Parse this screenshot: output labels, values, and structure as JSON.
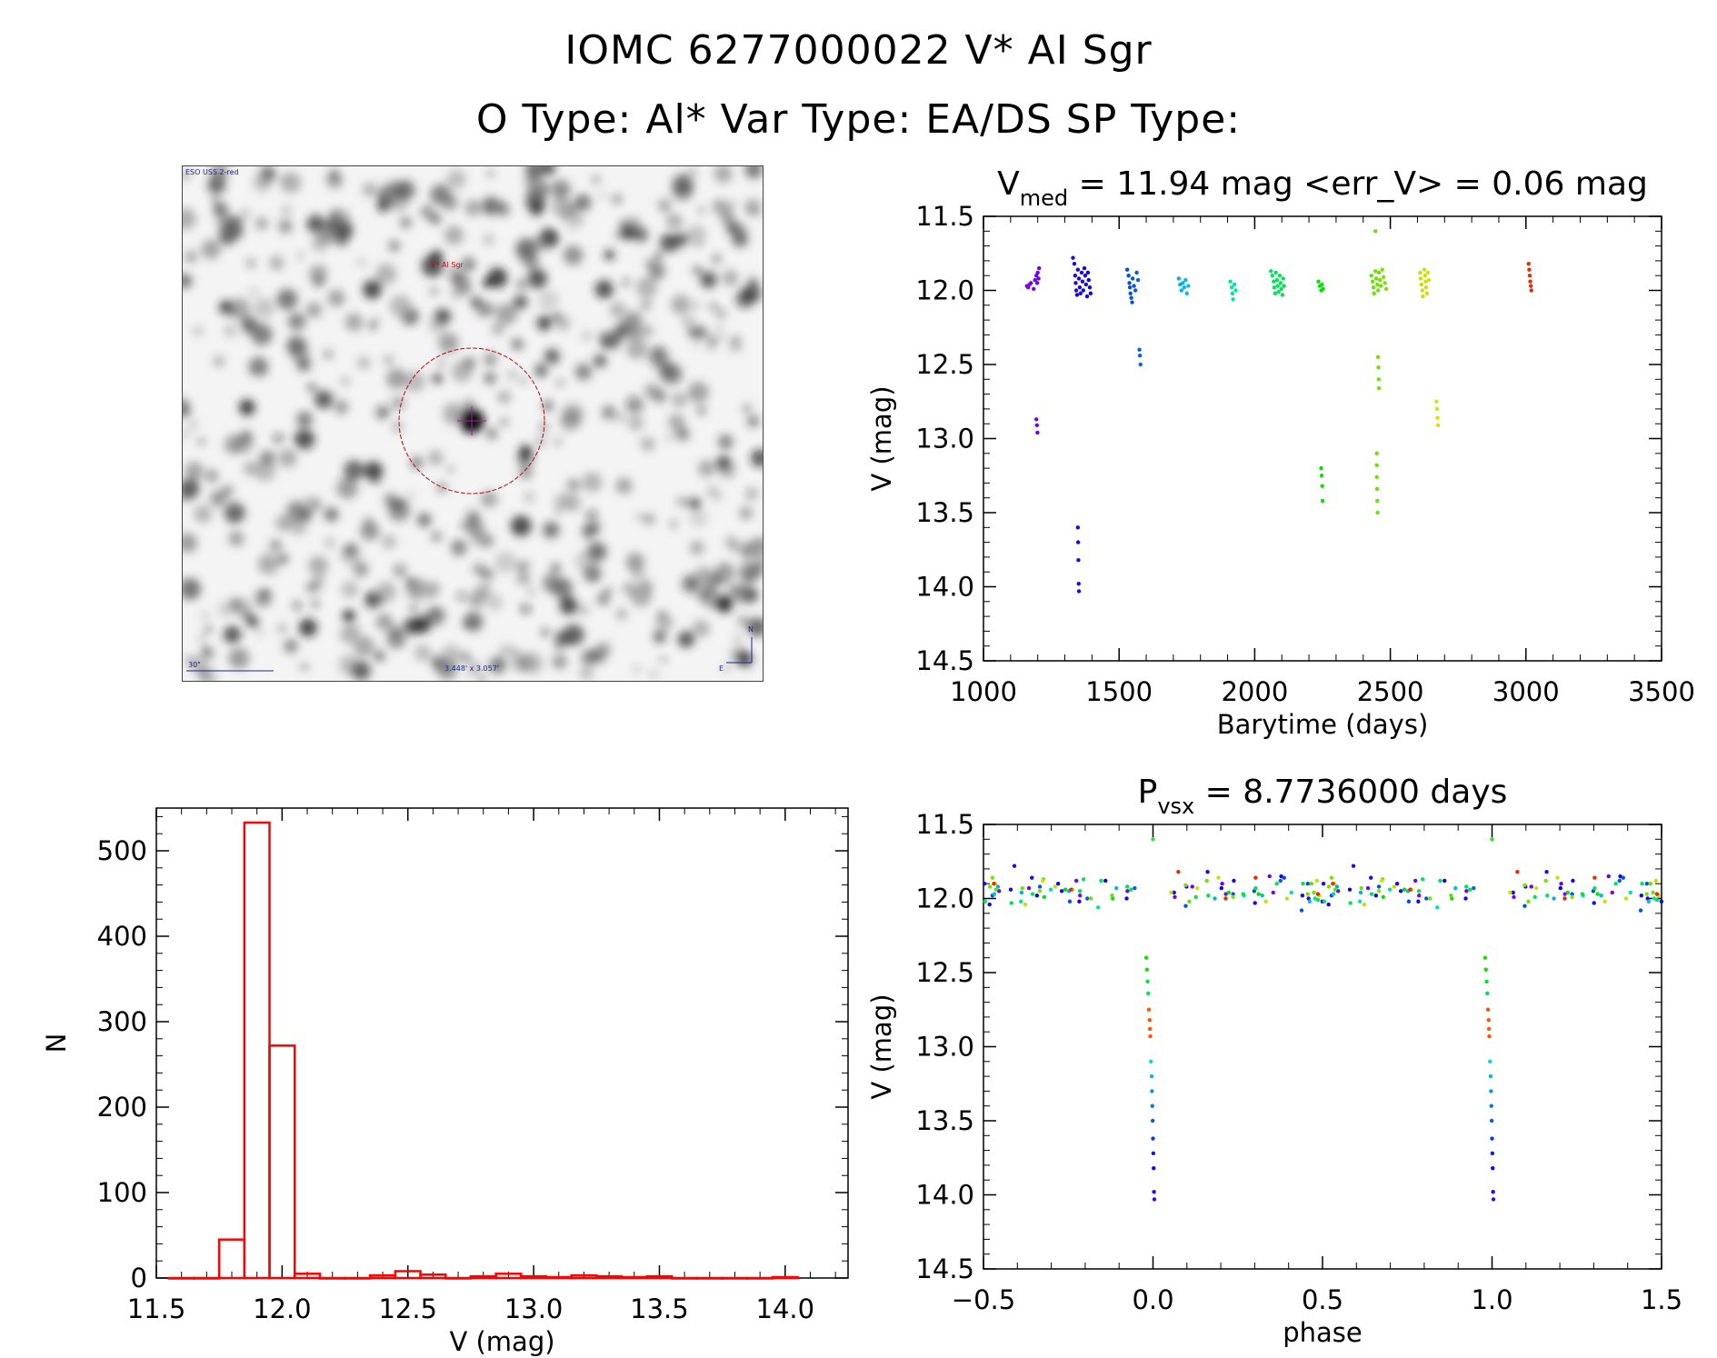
{
  "header": {
    "title": "IOMC 6277000022    V* AI Sgr",
    "subtitle": "O Type: Al*  Var Type: EA/DS  SP Type:"
  },
  "sky_image": {
    "survey_label": "ESO USS 2-red",
    "target_label": "V* AI Sgr",
    "scale_label": "30\"",
    "size_label": "3.448' x 3.057'",
    "north": "N",
    "east": "E"
  },
  "chart_data": [
    {
      "type": "scatter",
      "title": "V_med = 11.94 mag <err_V> = 0.06 mag",
      "title_parts": {
        "base": "V",
        "sub": "med",
        "rest": " =  11.94  mag  <err_V>  =  0.06  mag"
      },
      "xlabel": "Barytime (days)",
      "ylabel": "V (mag)",
      "xlim": [
        1000,
        3500
      ],
      "ylim": [
        14.5,
        11.5
      ],
      "y_inverted": true,
      "xticks": [
        1000,
        1500,
        2000,
        2500,
        3000,
        3500
      ],
      "xtick_labels": [
        "1000",
        "1500",
        "2000",
        "2500",
        "3000",
        "3500"
      ],
      "yticks": [
        11.5,
        12.0,
        12.5,
        13.0,
        13.5,
        14.0,
        14.5
      ],
      "ytick_labels": [
        "11.5",
        "12.0",
        "12.5",
        "13.0",
        "13.5",
        "14.0",
        "14.5"
      ],
      "point_color_scale": "rainbow (by time)",
      "points": [
        [
          1160,
          11.97
        ],
        [
          1165,
          11.98
        ],
        [
          1170,
          11.96
        ],
        [
          1175,
          11.95
        ],
        [
          1185,
          11.99
        ],
        [
          1190,
          11.93
        ],
        [
          1195,
          11.9
        ],
        [
          1200,
          11.88
        ],
        [
          1205,
          11.85
        ],
        [
          1198,
          11.95
        ],
        [
          1203,
          11.92
        ],
        [
          1195,
          12.87
        ],
        [
          1197,
          12.91
        ],
        [
          1199,
          12.96
        ],
        [
          1330,
          11.78
        ],
        [
          1335,
          11.82
        ],
        [
          1338,
          11.9
        ],
        [
          1340,
          11.95
        ],
        [
          1342,
          12.0
        ],
        [
          1345,
          12.03
        ],
        [
          1348,
          11.86
        ],
        [
          1352,
          11.92
        ],
        [
          1355,
          11.98
        ],
        [
          1358,
          12.02
        ],
        [
          1362,
          11.88
        ],
        [
          1365,
          11.94
        ],
        [
          1368,
          12.0
        ],
        [
          1372,
          11.85
        ],
        [
          1375,
          11.9
        ],
        [
          1378,
          11.96
        ],
        [
          1382,
          12.04
        ],
        [
          1385,
          11.88
        ],
        [
          1388,
          11.93
        ],
        [
          1392,
          11.98
        ],
        [
          1395,
          12.02
        ],
        [
          1348,
          13.6
        ],
        [
          1349,
          13.7
        ],
        [
          1350,
          13.82
        ],
        [
          1351,
          13.98
        ],
        [
          1352,
          14.03
        ],
        [
          1530,
          11.86
        ],
        [
          1535,
          11.9
        ],
        [
          1538,
          11.95
        ],
        [
          1540,
          11.98
        ],
        [
          1542,
          12.02
        ],
        [
          1545,
          12.05
        ],
        [
          1548,
          12.08
        ],
        [
          1550,
          11.92
        ],
        [
          1555,
          11.97
        ],
        [
          1560,
          12.0
        ],
        [
          1565,
          11.88
        ],
        [
          1570,
          11.93
        ],
        [
          1575,
          12.4
        ],
        [
          1577,
          12.44
        ],
        [
          1579,
          12.5
        ],
        [
          1720,
          11.92
        ],
        [
          1725,
          11.96
        ],
        [
          1730,
          12.0
        ],
        [
          1735,
          11.95
        ],
        [
          1740,
          11.98
        ],
        [
          1745,
          11.93
        ],
        [
          1750,
          12.02
        ],
        [
          1755,
          11.97
        ],
        [
          1910,
          11.94
        ],
        [
          1915,
          11.98
        ],
        [
          1918,
          12.02
        ],
        [
          1920,
          12.06
        ],
        [
          1925,
          11.96
        ],
        [
          1930,
          12.0
        ],
        [
          2060,
          11.87
        ],
        [
          2065,
          11.9
        ],
        [
          2070,
          11.94
        ],
        [
          2072,
          11.98
        ],
        [
          2075,
          12.02
        ],
        [
          2078,
          11.88
        ],
        [
          2082,
          11.93
        ],
        [
          2085,
          11.97
        ],
        [
          2088,
          12.01
        ],
        [
          2092,
          11.9
        ],
        [
          2095,
          11.95
        ],
        [
          2098,
          11.99
        ],
        [
          2102,
          12.03
        ],
        [
          2105,
          11.92
        ],
        [
          2108,
          11.97
        ],
        [
          2235,
          11.94
        ],
        [
          2240,
          11.97
        ],
        [
          2245,
          12.0
        ],
        [
          2248,
          11.96
        ],
        [
          2252,
          11.99
        ],
        [
          2245,
          13.2
        ],
        [
          2247,
          13.25
        ],
        [
          2249,
          13.32
        ],
        [
          2250,
          13.42
        ],
        [
          2430,
          11.9
        ],
        [
          2435,
          11.94
        ],
        [
          2438,
          11.98
        ],
        [
          2440,
          12.02
        ],
        [
          2445,
          11.87
        ],
        [
          2448,
          11.92
        ],
        [
          2452,
          11.96
        ],
        [
          2455,
          12.0
        ],
        [
          2458,
          11.88
        ],
        [
          2462,
          11.93
        ],
        [
          2465,
          11.97
        ],
        [
          2470,
          11.86
        ],
        [
          2475,
          11.91
        ],
        [
          2480,
          11.95
        ],
        [
          2485,
          11.99
        ],
        [
          2445,
          11.6
        ],
        [
          2450,
          13.1
        ],
        [
          2450,
          13.18
        ],
        [
          2450,
          13.26
        ],
        [
          2451,
          13.34
        ],
        [
          2452,
          13.42
        ],
        [
          2453,
          13.5
        ],
        [
          2455,
          12.45
        ],
        [
          2456,
          12.52
        ],
        [
          2457,
          12.6
        ],
        [
          2458,
          12.66
        ],
        [
          2610,
          11.88
        ],
        [
          2612,
          11.92
        ],
        [
          2615,
          11.96
        ],
        [
          2618,
          12.0
        ],
        [
          2620,
          12.04
        ],
        [
          2625,
          11.86
        ],
        [
          2628,
          11.9
        ],
        [
          2630,
          11.94
        ],
        [
          2632,
          11.98
        ],
        [
          2635,
          12.02
        ],
        [
          2638,
          11.88
        ],
        [
          2642,
          11.93
        ],
        [
          2670,
          12.75
        ],
        [
          2672,
          12.8
        ],
        [
          2674,
          12.86
        ],
        [
          2676,
          12.91
        ],
        [
          3010,
          11.82
        ],
        [
          3012,
          11.86
        ],
        [
          3014,
          11.9
        ],
        [
          3016,
          11.94
        ],
        [
          3018,
          11.97
        ],
        [
          3020,
          12.0
        ]
      ]
    },
    {
      "type": "scatter",
      "title": "P_vsx = 8.7736000 days",
      "title_parts": {
        "base": "P",
        "sub": "vsx",
        "rest": " =  8.7736000  days"
      },
      "xlabel": "phase",
      "ylabel": "V (mag)",
      "xlim": [
        -0.5,
        1.5
      ],
      "ylim": [
        14.5,
        11.5
      ],
      "y_inverted": true,
      "xticks": [
        -0.5,
        0.0,
        0.5,
        1.0,
        1.5
      ],
      "xtick_labels": [
        "−0.5",
        "0.0",
        "0.5",
        "1.0",
        "1.5"
      ],
      "yticks": [
        11.5,
        12.0,
        12.5,
        13.0,
        13.5,
        14.0,
        14.5
      ],
      "ytick_labels": [
        "11.5",
        "12.0",
        "12.5",
        "13.0",
        "13.5",
        "14.0",
        "14.5"
      ],
      "period_days": 8.7736,
      "eclipse_points": [
        [
          -0.02,
          12.4
        ],
        [
          -0.018,
          12.48
        ],
        [
          -0.016,
          12.56
        ],
        [
          -0.014,
          12.64
        ],
        [
          -0.012,
          12.75
        ],
        [
          -0.01,
          12.82
        ],
        [
          -0.009,
          12.88
        ],
        [
          -0.008,
          12.93
        ],
        [
          -0.006,
          13.1
        ],
        [
          -0.004,
          13.2
        ],
        [
          -0.003,
          13.3
        ],
        [
          -0.002,
          13.4
        ],
        [
          -0.001,
          13.5
        ],
        [
          0.0,
          13.62
        ],
        [
          0.001,
          13.72
        ],
        [
          0.002,
          13.82
        ],
        [
          0.003,
          13.98
        ],
        [
          0.004,
          14.03
        ],
        [
          0.0,
          11.6
        ]
      ]
    },
    {
      "type": "bar",
      "histogram": true,
      "title": "",
      "xlabel": "V (mag)",
      "ylabel": "N",
      "xlim": [
        11.5,
        14.25
      ],
      "ylim": [
        0,
        550
      ],
      "xticks": [
        11.5,
        12.0,
        12.5,
        13.0,
        13.5,
        14.0
      ],
      "xtick_labels": [
        "11.5",
        "12.0",
        "12.5",
        "13.0",
        "13.5",
        "14.0"
      ],
      "yticks": [
        0,
        100,
        200,
        300,
        400,
        500
      ],
      "ytick_labels": [
        "0",
        "100",
        "200",
        "300",
        "400",
        "500"
      ],
      "bin_width": 0.1,
      "bins": [
        [
          11.6,
          0
        ],
        [
          11.7,
          0
        ],
        [
          11.8,
          45
        ],
        [
          11.9,
          533
        ],
        [
          12.0,
          272
        ],
        [
          12.1,
          5
        ],
        [
          12.2,
          0
        ],
        [
          12.3,
          0
        ],
        [
          12.4,
          3
        ],
        [
          12.5,
          8
        ],
        [
          12.6,
          4
        ],
        [
          12.7,
          0
        ],
        [
          12.8,
          2
        ],
        [
          12.9,
          5
        ],
        [
          13.0,
          2
        ],
        [
          13.1,
          1
        ],
        [
          13.2,
          3
        ],
        [
          13.3,
          2
        ],
        [
          13.4,
          1
        ],
        [
          13.5,
          2
        ],
        [
          13.6,
          0
        ],
        [
          13.7,
          0
        ],
        [
          13.8,
          0
        ],
        [
          13.9,
          0
        ],
        [
          14.0,
          1
        ]
      ],
      "bar_color": "#ff0000"
    }
  ]
}
